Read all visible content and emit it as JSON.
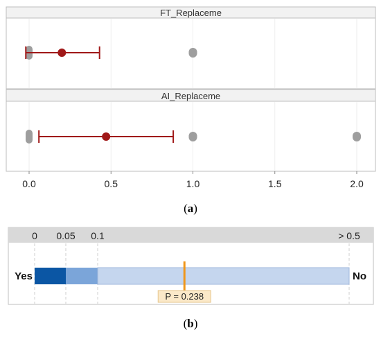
{
  "chart_data": [
    {
      "type": "interval-plot",
      "caption_letter": "a",
      "xlim": [
        -0.15,
        2.12
      ],
      "xticks": [
        0.0,
        0.5,
        1.0,
        1.5,
        2.0
      ],
      "xtick_labels": [
        "0.0",
        "0.5",
        "1.0",
        "1.5",
        "2.0"
      ],
      "grid": true,
      "colors": {
        "point": "#a01818",
        "data": "#9e9e9e",
        "strip": "#f2f2f2",
        "border": "#bdbdbd"
      },
      "panels": [
        {
          "title": "FT_Replaceme",
          "data_points": [
            0,
            1
          ],
          "mean": 0.2,
          "ci": [
            -0.02,
            0.43
          ]
        },
        {
          "title": "AI_Replaceme",
          "data_points": [
            0,
            1,
            2
          ],
          "mean": 0.47,
          "ci": [
            0.06,
            0.88
          ]
        }
      ]
    },
    {
      "type": "p-value-bar",
      "caption_letter": "b",
      "scale_labels": [
        "0",
        "0.05",
        "0.1",
        "> 0.5"
      ],
      "left_label": "Yes",
      "right_label": "No",
      "p_value": 0.238,
      "p_label": "P = 0.238",
      "colors": {
        "dark": "#0b56a4",
        "mid": "#7ba5d9",
        "light": "#c5d6ee",
        "marker": "#f0961a",
        "label_bg": "#fbe9c9"
      }
    }
  ],
  "captions": {
    "a": "(a)",
    "b": "(b)"
  }
}
